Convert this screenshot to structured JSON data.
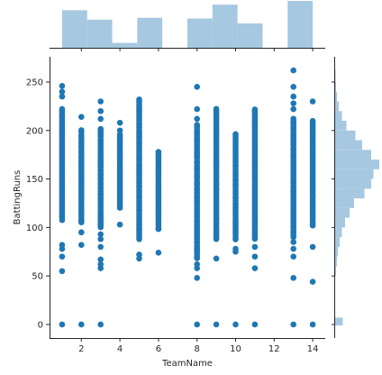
{
  "chart_data": {
    "type": "scatter",
    "style": "jointplot",
    "xlabel": "TeamName",
    "ylabel": "BattingRuns",
    "xlim": [
      0.35,
      14.65
    ],
    "ylim": [
      -14,
      276
    ],
    "xticks": [
      2,
      4,
      6,
      8,
      10,
      12,
      14
    ],
    "yticks": [
      0,
      50,
      100,
      150,
      200,
      250
    ],
    "colors": {
      "points": "#1f77b4",
      "histogram": "#a6c8e0",
      "axis": "#262626"
    },
    "grid": false,
    "legend": "none",
    "series": [
      {
        "team_columns": [
          {
            "x": 1,
            "zero": true,
            "min": 108,
            "max": 222,
            "outliers": [
              55,
              70,
              78,
              82,
              235,
              240,
              246
            ]
          },
          {
            "x": 2,
            "zero": true,
            "min": 105,
            "max": 200,
            "outliers": [
              82,
              95,
              214
            ]
          },
          {
            "x": 3,
            "zero": true,
            "min": 100,
            "max": 202,
            "outliers": [
              58,
              62,
              67,
              80,
              88,
              93,
              212,
              220,
              230
            ]
          },
          {
            "x": 4,
            "zero": false,
            "min": 120,
            "max": 196,
            "outliers": [
              103,
              200,
              208
            ]
          },
          {
            "x": 5,
            "zero": false,
            "min": 88,
            "max": 232,
            "outliers": [
              68,
              72
            ]
          },
          {
            "x": 6,
            "zero": false,
            "min": 98,
            "max": 178,
            "outliers": [
              74
            ]
          },
          {
            "x": 8,
            "zero": true,
            "min": 68,
            "max": 206,
            "outliers": [
              48,
              58,
              62,
              212,
              222,
              245
            ]
          },
          {
            "x": 9,
            "zero": true,
            "min": 88,
            "max": 222,
            "outliers": [
              68
            ]
          },
          {
            "x": 10,
            "zero": true,
            "min": 88,
            "max": 196,
            "outliers": [
              75,
              78
            ]
          },
          {
            "x": 11,
            "zero": true,
            "min": 88,
            "max": 222,
            "outliers": [
              58,
              70,
              80
            ]
          },
          {
            "x": 13,
            "zero": true,
            "min": 90,
            "max": 212,
            "outliers": [
              48,
              70,
              78,
              85,
              222,
              228,
              235,
              245,
              262
            ]
          },
          {
            "x": 14,
            "zero": true,
            "min": 102,
            "max": 210,
            "outliers": [
              44,
              80,
              230
            ]
          }
        ]
      }
    ],
    "top_histogram": {
      "bins": [
        {
          "x0": 1,
          "x1": 2.3,
          "value": 1.0
        },
        {
          "x0": 2.3,
          "x1": 3.6,
          "value": 0.75
        },
        {
          "x0": 3.6,
          "x1": 4.9,
          "value": 0.13
        },
        {
          "x0": 4.9,
          "x1": 6.2,
          "value": 0.8
        },
        {
          "x0": 6.2,
          "x1": 7.5,
          "value": 0.0
        },
        {
          "x0": 7.5,
          "x1": 8.8,
          "value": 0.78
        },
        {
          "x0": 8.8,
          "x1": 10.1,
          "value": 1.15
        },
        {
          "x0": 10.1,
          "x1": 11.4,
          "value": 0.65
        },
        {
          "x0": 11.4,
          "x1": 12.7,
          "value": 0.0
        },
        {
          "x0": 12.7,
          "x1": 14.0,
          "value": 1.25
        }
      ]
    },
    "right_histogram": {
      "bins": [
        {
          "y0": -1,
          "y1": 7,
          "value": 0.17
        },
        {
          "y0": 50,
          "y1": 60,
          "value": 0.02
        },
        {
          "y0": 60,
          "y1": 70,
          "value": 0.04
        },
        {
          "y0": 70,
          "y1": 80,
          "value": 0.06
        },
        {
          "y0": 80,
          "y1": 90,
          "value": 0.1
        },
        {
          "y0": 90,
          "y1": 100,
          "value": 0.15
        },
        {
          "y0": 100,
          "y1": 110,
          "value": 0.22
        },
        {
          "y0": 110,
          "y1": 120,
          "value": 0.32
        },
        {
          "y0": 120,
          "y1": 130,
          "value": 0.42
        },
        {
          "y0": 130,
          "y1": 140,
          "value": 0.65
        },
        {
          "y0": 140,
          "y1": 150,
          "value": 0.8
        },
        {
          "y0": 150,
          "y1": 160,
          "value": 0.85
        },
        {
          "y0": 160,
          "y1": 170,
          "value": 0.98
        },
        {
          "y0": 170,
          "y1": 180,
          "value": 0.8
        },
        {
          "y0": 180,
          "y1": 190,
          "value": 0.6
        },
        {
          "y0": 190,
          "y1": 200,
          "value": 0.45
        },
        {
          "y0": 200,
          "y1": 210,
          "value": 0.25
        },
        {
          "y0": 210,
          "y1": 220,
          "value": 0.15
        },
        {
          "y0": 220,
          "y1": 230,
          "value": 0.08
        },
        {
          "y0": 230,
          "y1": 240,
          "value": 0.04
        },
        {
          "y0": 240,
          "y1": 250,
          "value": 0.02
        },
        {
          "y0": 250,
          "y1": 262,
          "value": 0.01
        }
      ]
    }
  }
}
